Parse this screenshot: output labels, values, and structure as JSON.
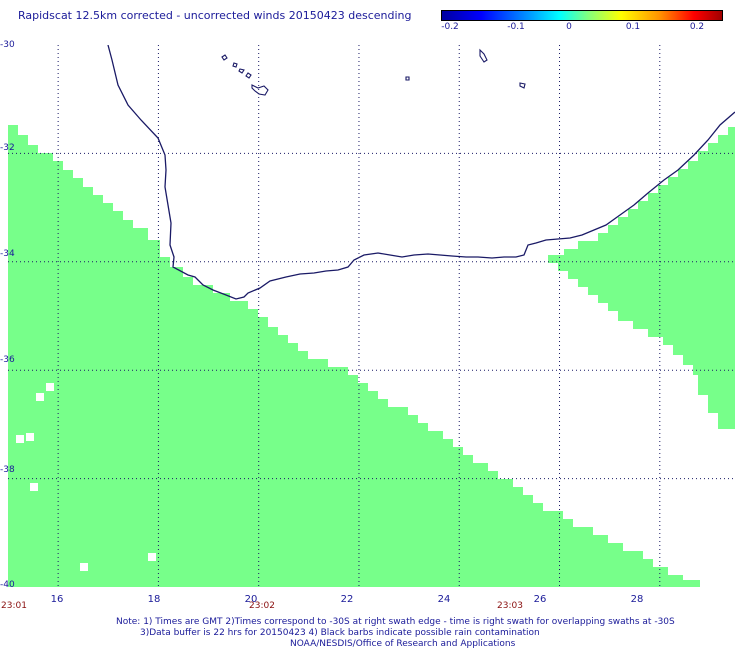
{
  "title": "Rapidscat 12.5km corrected - uncorrected winds 20150423 descending",
  "colorbar": {
    "ticks": [
      "-0.2",
      "-0.1",
      "0",
      "0.1",
      "0.2"
    ],
    "colors": [
      "#0000a0",
      "#0000ff",
      "#00ffff",
      "#ffff00",
      "#ff0000",
      "#a00000"
    ]
  },
  "map": {
    "lon_range": [
      15,
      29.5
    ],
    "lat_range": [
      -40,
      -30
    ],
    "lat_labels": [
      "-30",
      "-32",
      "-34",
      "-36",
      "-38",
      "-40"
    ],
    "lon_labels": [
      "16",
      "18",
      "20",
      "22",
      "24",
      "26",
      "28"
    ],
    "time_labels": [
      "23:01",
      "23:02",
      "23:03"
    ],
    "swath_color": "#77ff8a",
    "coast_color": "#1a1a66",
    "grid": true
  },
  "notes": {
    "line1": "Note: 1) Times are GMT 2)Times correspond to -30S at right swath edge - time is right swath for overlapping swaths at -30S",
    "line2": "3)Data buffer is 22 hrs for 20150423 4) Black barbs indicate possible rain contamination",
    "line3": "NOAA/NESDIS/Office of Research and Applications"
  }
}
